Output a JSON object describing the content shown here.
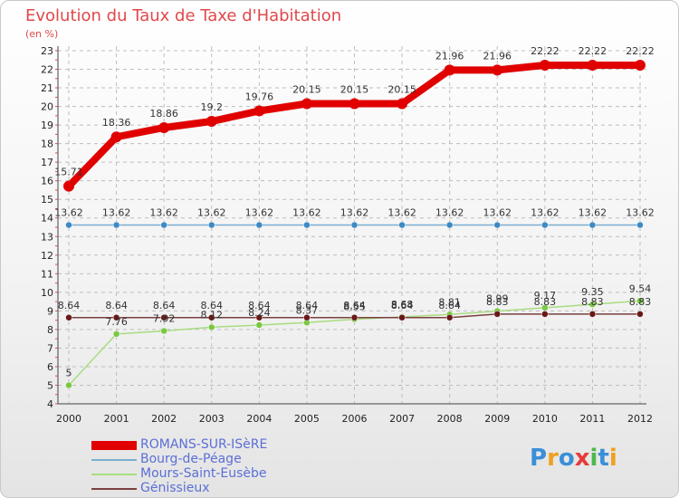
{
  "title": "Evolution du Taux de Taxe d'Habitation",
  "subtitle": "(en %)",
  "logo": {
    "text": "Proxiti",
    "letters": [
      "P",
      "r",
      "o",
      "x",
      "i",
      "t",
      "i"
    ],
    "colors": [
      "#3a8fd8",
      "#f0a020",
      "#3a8fd8",
      "#e83a3a",
      "#4cb84c",
      "#3a8fd8",
      "#f0a020"
    ]
  },
  "chart_data": {
    "type": "line",
    "title": "Evolution du Taux de Taxe d'Habitation",
    "ylabel": "(en %)",
    "xlabel": "",
    "x": [
      "2000",
      "2001",
      "2002",
      "2003",
      "2004",
      "2005",
      "2006",
      "2007",
      "2008",
      "2009",
      "2010",
      "2011",
      "2012"
    ],
    "ylim": [
      4,
      23
    ],
    "yticks": [
      4,
      5,
      6,
      7,
      8,
      9,
      10,
      11,
      12,
      13,
      14,
      15,
      16,
      17,
      18,
      19,
      20,
      21,
      22,
      23
    ],
    "grid": true,
    "legend_position": "bottom-left",
    "series": [
      {
        "name": "ROMANS-SUR-ISèRE",
        "color": "#e00000",
        "values": [
          15.71,
          18.36,
          18.86,
          19.2,
          19.76,
          20.15,
          20.15,
          20.15,
          21.96,
          21.96,
          22.22,
          22.22,
          22.22
        ],
        "labels": [
          "15.71",
          "18.36",
          "18.86",
          "19.2",
          "19.76",
          "20.15",
          "20.15",
          "20.15",
          "21.96",
          "21.96",
          "22.22",
          "22.22",
          "22.22"
        ]
      },
      {
        "name": "Bourg-de-Péage",
        "color": "#7aaed0",
        "marker": "#3d8ac4",
        "values": [
          13.62,
          13.62,
          13.62,
          13.62,
          13.62,
          13.62,
          13.62,
          13.62,
          13.62,
          13.62,
          13.62,
          13.62,
          13.62
        ],
        "labels": [
          "13.62",
          "13.62",
          "13.62",
          "13.62",
          "13.62",
          "13.62",
          "13.62",
          "13.62",
          "13.62",
          "13.62",
          "13.62",
          "13.62",
          "13.62"
        ]
      },
      {
        "name": "Mours-Saint-Eusèbe",
        "color": "#a8dc80",
        "marker": "#78c840",
        "values": [
          5,
          7.76,
          7.92,
          8.12,
          8.24,
          8.37,
          8.55,
          8.68,
          8.81,
          8.99,
          9.17,
          9.35,
          9.54
        ],
        "labels": [
          "5",
          "7.76",
          "7.92",
          "8.12",
          "8.24",
          "8.37",
          "8.55",
          "8.68",
          "8.81",
          "8.99",
          "9.17",
          "9.35",
          "9.54"
        ]
      },
      {
        "name": "Génissieux",
        "color": "#7a4040",
        "marker": "#6a1818",
        "values": [
          8.64,
          8.64,
          8.64,
          8.64,
          8.64,
          8.64,
          8.64,
          8.64,
          8.64,
          8.83,
          8.83,
          8.83,
          8.83
        ],
        "labels": [
          "8.64",
          "8.64",
          "8.64",
          "8.64",
          "8.64",
          "8.64",
          "8.64",
          "8.64",
          "8.64",
          "8.83",
          "8.83",
          "8.83",
          "8.83"
        ]
      }
    ]
  }
}
